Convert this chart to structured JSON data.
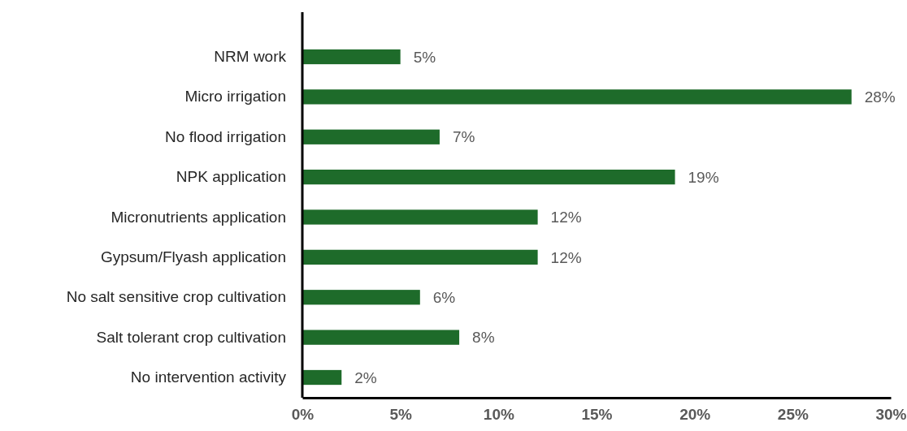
{
  "chart_data": {
    "type": "bar",
    "orientation": "horizontal",
    "categories": [
      "NRM work",
      "Micro irrigation",
      "No flood irrigation",
      "NPK application",
      "Micronutrients application",
      "Gypsum/Flyash application",
      "No salt sensitive crop cultivation",
      "Salt tolerant crop cultivation",
      "No intervention activity"
    ],
    "values": [
      5,
      28,
      7,
      19,
      12,
      12,
      6,
      8,
      2
    ],
    "value_labels": [
      "5%",
      "28%",
      "7%",
      "19%",
      "12%",
      "12%",
      "6%",
      "8%",
      "2%"
    ],
    "color": "#1e6b2a",
    "xlim": [
      0,
      30
    ],
    "xticks": [
      {
        "value": 0,
        "label": "0%"
      },
      {
        "value": 5,
        "label": "5%"
      },
      {
        "value": 10,
        "label": "10%"
      },
      {
        "value": 15,
        "label": "15%"
      },
      {
        "value": 20,
        "label": "20%"
      },
      {
        "value": 25,
        "label": "25%"
      },
      {
        "value": 30,
        "label": "30%"
      }
    ],
    "xlabel": null
  }
}
